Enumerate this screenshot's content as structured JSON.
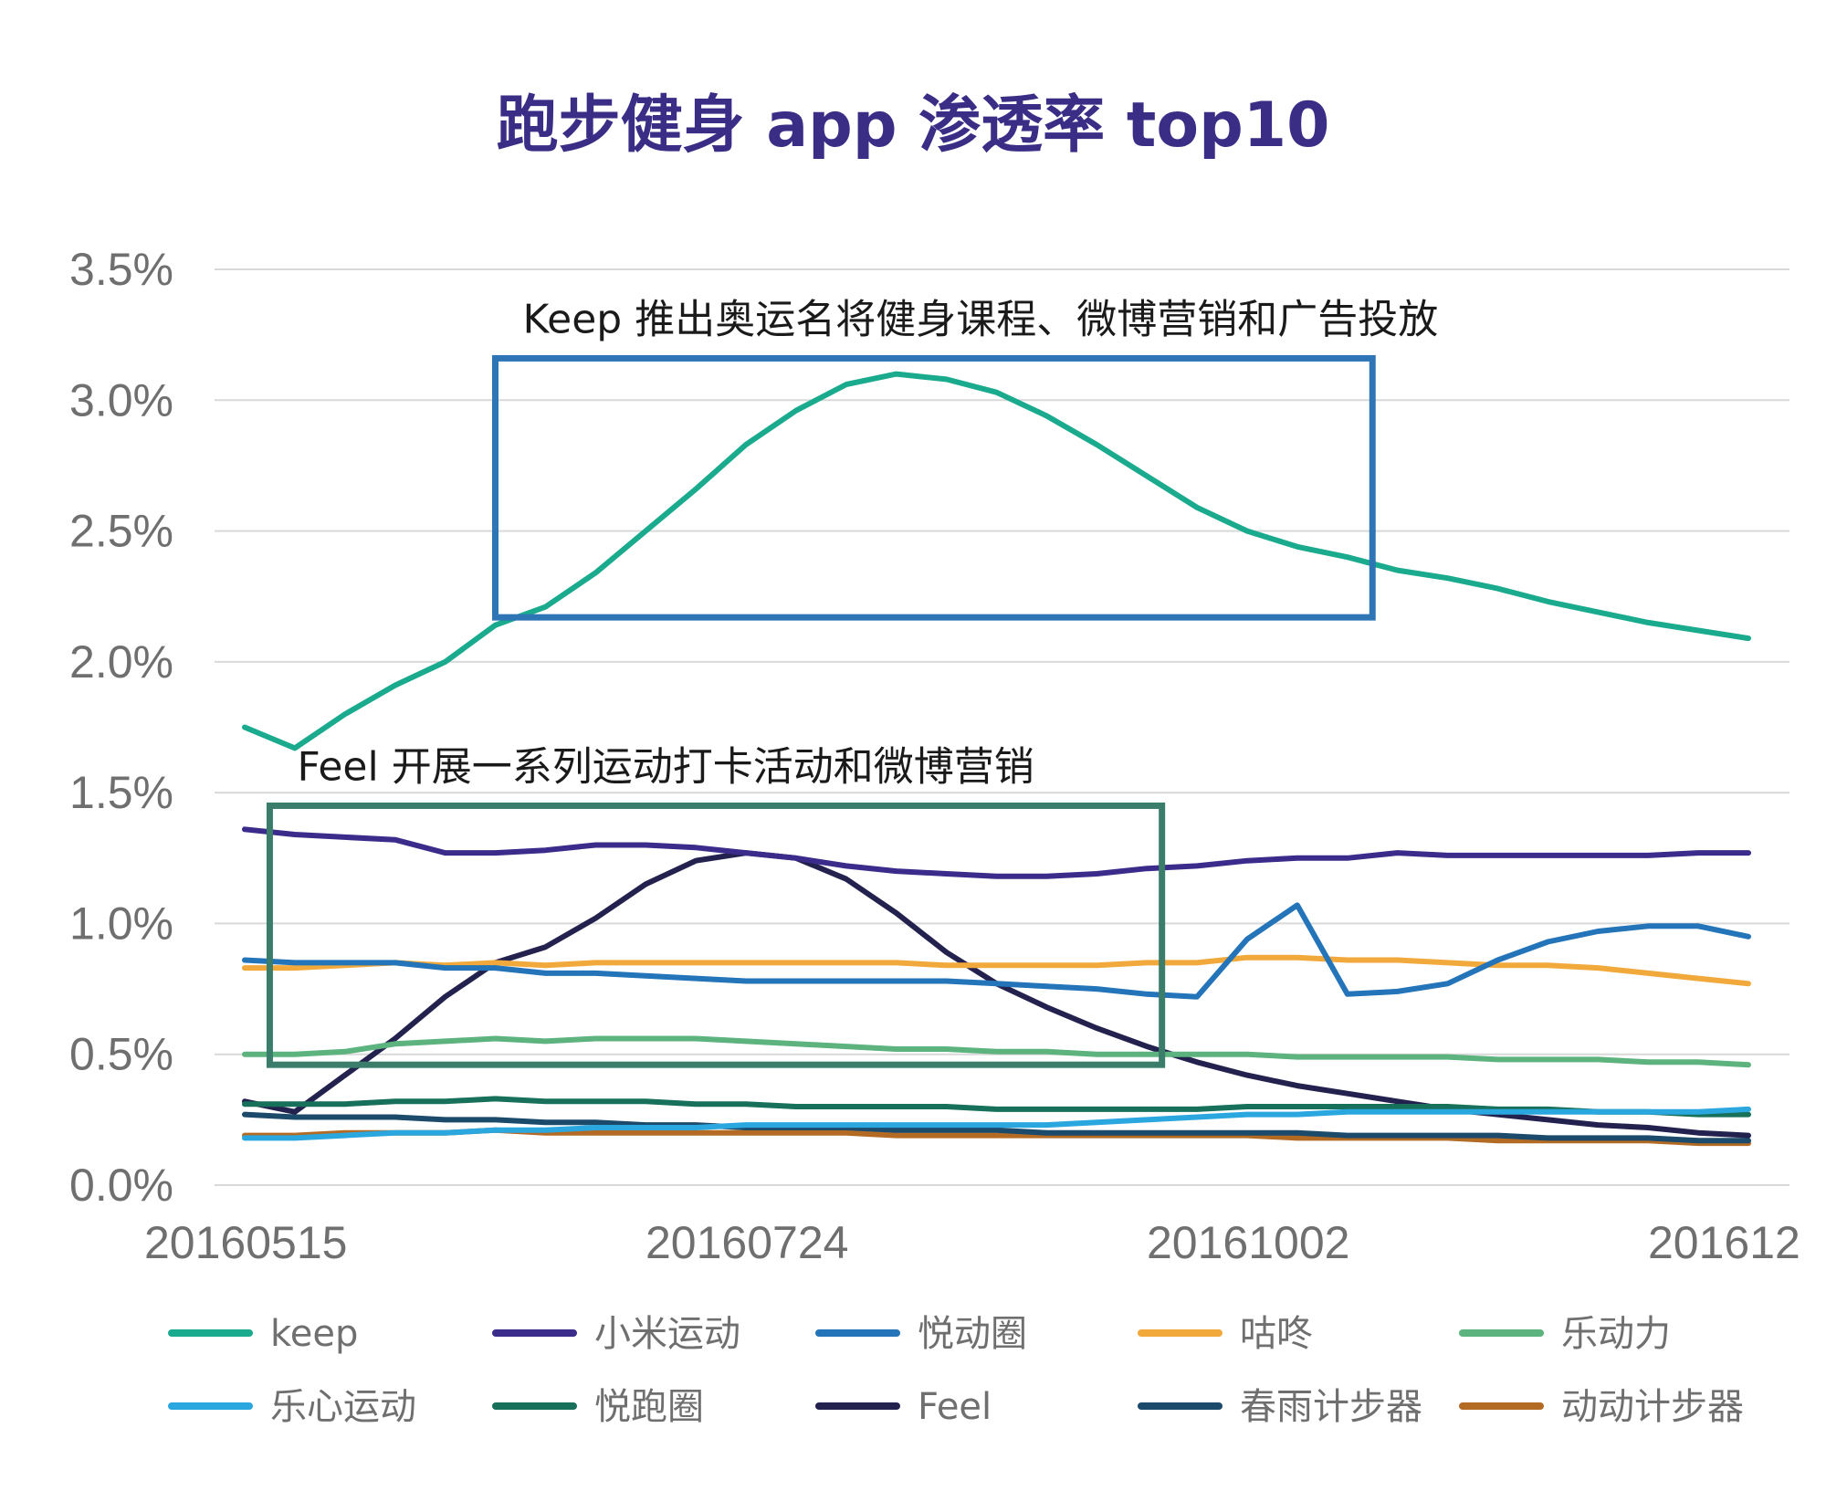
{
  "chart_data": {
    "type": "line",
    "title": "跑步健身 app 渗透率 top10",
    "xlabel": "",
    "ylabel": "",
    "ylim": [
      0,
      3.5
    ],
    "y_ticks": [
      "0.0%",
      "0.5%",
      "1.0%",
      "1.5%",
      "2.0%",
      "2.5%",
      "3.0%",
      "3.5%"
    ],
    "y_tick_values": [
      0,
      0.5,
      1.0,
      1.5,
      2.0,
      2.5,
      3.0,
      3.5
    ],
    "x_tick_labels": [
      "20160515",
      "20160724",
      "20161002",
      "201612"
    ],
    "x_tick_indices": [
      0,
      10,
      20,
      30
    ],
    "n_points": 31,
    "grid": true,
    "legend_position": "bottom",
    "annotations": [
      {
        "text": "Keep 推出奥运名将健身课程、微博营销和广告投放",
        "x_start": 5,
        "x_end": 22.5,
        "y_low": 2.17,
        "y_high": 3.16,
        "color": "#2e75b6"
      },
      {
        "text": "Feel  开展一系列运动打卡活动和微博营销",
        "x_start": 0.5,
        "x_end": 18.3,
        "y_low": 0.46,
        "y_high": 1.45,
        "color": "#3a7d6a"
      }
    ],
    "series": [
      {
        "name": "keep",
        "color": "#1aaa8d",
        "values": [
          1.75,
          1.67,
          1.8,
          1.91,
          2.0,
          2.14,
          2.21,
          2.34,
          2.5,
          2.66,
          2.83,
          2.96,
          3.06,
          3.1,
          3.08,
          3.03,
          2.94,
          2.83,
          2.71,
          2.59,
          2.5,
          2.44,
          2.4,
          2.35,
          2.32,
          2.28,
          2.23,
          2.19,
          2.15,
          2.12,
          2.09
        ]
      },
      {
        "name": "小米运动",
        "color": "#3b2b8a",
        "values": [
          1.36,
          1.34,
          1.33,
          1.32,
          1.27,
          1.27,
          1.28,
          1.3,
          1.3,
          1.29,
          1.27,
          1.25,
          1.22,
          1.2,
          1.19,
          1.18,
          1.18,
          1.19,
          1.21,
          1.22,
          1.24,
          1.25,
          1.25,
          1.27,
          1.26,
          1.26,
          1.26,
          1.26,
          1.26,
          1.27,
          1.27
        ]
      },
      {
        "name": "悦动圈",
        "color": "#2374b8",
        "values": [
          0.86,
          0.85,
          0.85,
          0.85,
          0.83,
          0.83,
          0.81,
          0.81,
          0.8,
          0.79,
          0.78,
          0.78,
          0.78,
          0.78,
          0.78,
          0.77,
          0.76,
          0.75,
          0.73,
          0.72,
          0.94,
          1.07,
          0.73,
          0.74,
          0.77,
          0.86,
          0.93,
          0.97,
          0.99,
          0.99,
          0.95
        ]
      },
      {
        "name": "咕咚",
        "color": "#f2a93b",
        "values": [
          0.83,
          0.83,
          0.84,
          0.85,
          0.84,
          0.85,
          0.84,
          0.85,
          0.85,
          0.85,
          0.85,
          0.85,
          0.85,
          0.85,
          0.84,
          0.84,
          0.84,
          0.84,
          0.85,
          0.85,
          0.87,
          0.87,
          0.86,
          0.86,
          0.85,
          0.84,
          0.84,
          0.83,
          0.81,
          0.79,
          0.77
        ]
      },
      {
        "name": "乐动力",
        "color": "#5cb37e",
        "values": [
          0.5,
          0.5,
          0.51,
          0.54,
          0.55,
          0.56,
          0.55,
          0.56,
          0.56,
          0.56,
          0.55,
          0.54,
          0.53,
          0.52,
          0.52,
          0.51,
          0.51,
          0.5,
          0.5,
          0.5,
          0.5,
          0.49,
          0.49,
          0.49,
          0.49,
          0.48,
          0.48,
          0.48,
          0.47,
          0.47,
          0.46
        ]
      },
      {
        "name": "乐心运动",
        "color": "#2aa7df",
        "values": [
          0.18,
          0.18,
          0.19,
          0.2,
          0.2,
          0.21,
          0.21,
          0.22,
          0.22,
          0.22,
          0.23,
          0.23,
          0.23,
          0.23,
          0.23,
          0.23,
          0.23,
          0.24,
          0.25,
          0.26,
          0.27,
          0.27,
          0.28,
          0.28,
          0.28,
          0.28,
          0.28,
          0.28,
          0.28,
          0.28,
          0.29
        ]
      },
      {
        "name": "悦跑圈",
        "color": "#16705a",
        "values": [
          0.31,
          0.31,
          0.31,
          0.32,
          0.32,
          0.33,
          0.32,
          0.32,
          0.32,
          0.31,
          0.31,
          0.3,
          0.3,
          0.3,
          0.3,
          0.29,
          0.29,
          0.29,
          0.29,
          0.29,
          0.3,
          0.3,
          0.3,
          0.3,
          0.3,
          0.29,
          0.29,
          0.28,
          0.28,
          0.27,
          0.27
        ]
      },
      {
        "name": "Feel",
        "color": "#23224f",
        "values": [
          0.32,
          0.28,
          0.42,
          0.56,
          0.72,
          0.85,
          0.91,
          1.02,
          1.15,
          1.24,
          1.27,
          1.25,
          1.17,
          1.04,
          0.89,
          0.77,
          0.68,
          0.6,
          0.53,
          0.47,
          0.42,
          0.38,
          0.35,
          0.32,
          0.29,
          0.27,
          0.25,
          0.23,
          0.22,
          0.2,
          0.19
        ]
      },
      {
        "name": "春雨计步器",
        "color": "#1b4a6b",
        "values": [
          0.27,
          0.26,
          0.26,
          0.26,
          0.25,
          0.25,
          0.24,
          0.24,
          0.23,
          0.23,
          0.22,
          0.22,
          0.22,
          0.21,
          0.21,
          0.21,
          0.2,
          0.2,
          0.2,
          0.2,
          0.2,
          0.2,
          0.19,
          0.19,
          0.19,
          0.19,
          0.18,
          0.18,
          0.18,
          0.17,
          0.17
        ]
      },
      {
        "name": "动动计步器",
        "color": "#b36b24",
        "values": [
          0.19,
          0.19,
          0.2,
          0.2,
          0.2,
          0.21,
          0.2,
          0.2,
          0.2,
          0.2,
          0.2,
          0.2,
          0.2,
          0.19,
          0.19,
          0.19,
          0.19,
          0.19,
          0.19,
          0.19,
          0.19,
          0.18,
          0.18,
          0.18,
          0.18,
          0.17,
          0.17,
          0.17,
          0.17,
          0.16,
          0.16
        ]
      }
    ]
  }
}
